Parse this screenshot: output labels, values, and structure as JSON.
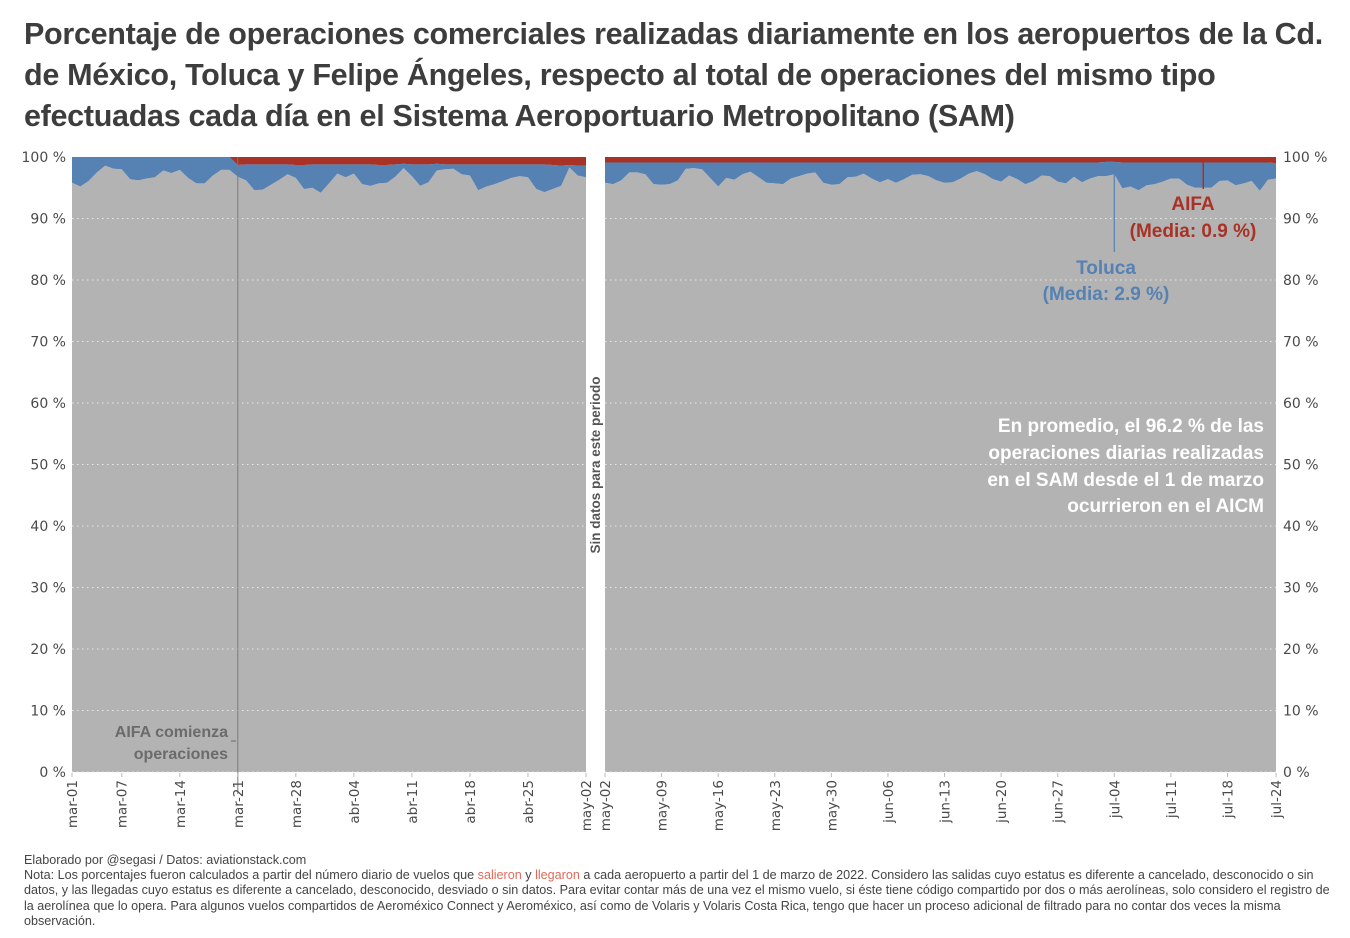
{
  "title": "Porcentaje de operaciones comerciales realizadas diariamente en los aeropuertos de la Cd. de México, Toluca y Felipe Ángeles, respecto al total de operaciones del mismo tipo efectuadas cada día en el Sistema Aeroportuario Metropolitano (SAM)",
  "colors": {
    "aicm": "#b3b3b3",
    "toluca": "#5581b3",
    "aifa": "#a93226",
    "vline_aifa_start": "#7a7a7a",
    "annotation_gray": "#6b6b6b",
    "annotation_white": "#ffffff"
  },
  "chart_data": {
    "type": "area",
    "stacked": true,
    "title": "Porcentaje de operaciones comerciales realizadas diariamente en los aeropuertos de la Cd. de México, Toluca y Felipe Ángeles, respecto al total de operaciones del mismo tipo efectuadas cada día en el Sistema Aeroportuario Metropolitano (SAM)",
    "xlabel": "",
    "ylabel": "",
    "ylim": [
      0,
      100
    ],
    "y_ticks": [
      "0 %",
      "10 %",
      "20 %",
      "30 %",
      "40 %",
      "50 %",
      "60 %",
      "70 %",
      "80 %",
      "90 %",
      "100 %"
    ],
    "grid": true,
    "legend": "inline-annotations",
    "panels": [
      {
        "name": "left",
        "x_range": [
          "2022-03-01",
          "2022-05-02"
        ],
        "x_ticks": [
          "mar-01",
          "mar-07",
          "mar-14",
          "mar-21",
          "mar-28",
          "abr-04",
          "abr-11",
          "abr-18",
          "abr-25",
          "may-02"
        ],
        "x_tick_days": [
          0,
          6,
          13,
          20,
          27,
          34,
          41,
          48,
          55,
          62
        ],
        "series": [
          {
            "name": "AICM",
            "values": [
              95.8,
              95.2,
              96.1,
              97.5,
              98.6,
              98.1,
              98.0,
              96.4,
              96.2,
              96.5,
              96.7,
              97.8,
              97.4,
              97.9,
              96.6,
              95.7,
              95.7,
              97.0,
              97.9,
              97.9,
              96.8,
              96.2,
              94.6,
              94.7,
              95.5,
              96.3,
              97.2,
              96.6,
              94.8,
              95.0,
              94.2,
              95.7,
              97.3,
              96.7,
              97.3,
              95.6,
              95.3,
              95.7,
              95.8,
              96.8,
              98.2,
              96.9,
              95.3,
              95.9,
              97.8,
              98.0,
              98.1,
              97.2,
              97.0,
              94.6,
              95.2,
              95.6,
              96.1,
              96.6,
              96.9,
              96.7,
              94.8,
              94.3,
              94.8,
              95.3,
              98.3,
              97.0,
              96.7
            ]
          },
          {
            "name": "Toluca",
            "values": [
              4.2,
              4.8,
              3.9,
              2.5,
              1.4,
              1.9,
              2.0,
              3.6,
              3.8,
              3.5,
              3.3,
              2.2,
              2.6,
              2.1,
              3.4,
              4.3,
              4.3,
              3.0,
              2.1,
              2.1,
              1.9,
              2.6,
              4.2,
              4.1,
              3.3,
              2.5,
              1.6,
              2.1,
              3.9,
              3.8,
              4.6,
              3.1,
              1.5,
              2.1,
              1.5,
              3.2,
              3.5,
              3.0,
              2.9,
              2.0,
              0.7,
              1.9,
              3.5,
              2.9,
              1.1,
              0.8,
              0.7,
              1.6,
              1.8,
              4.2,
              3.6,
              3.2,
              2.7,
              2.2,
              1.9,
              2.1,
              4.0,
              4.5,
              3.9,
              3.3,
              0.4,
              1.6,
              1.9
            ]
          },
          {
            "name": "AIFA",
            "values": [
              0,
              0,
              0,
              0,
              0,
              0,
              0,
              0,
              0,
              0,
              0,
              0,
              0,
              0,
              0,
              0,
              0,
              0,
              0,
              0,
              1.3,
              1.2,
              1.2,
              1.2,
              1.2,
              1.2,
              1.2,
              1.3,
              1.3,
              1.2,
              1.2,
              1.2,
              1.2,
              1.2,
              1.2,
              1.2,
              1.2,
              1.3,
              1.3,
              1.2,
              1.1,
              1.2,
              1.2,
              1.2,
              1.1,
              1.2,
              1.2,
              1.2,
              1.2,
              1.2,
              1.2,
              1.2,
              1.2,
              1.2,
              1.2,
              1.2,
              1.2,
              1.2,
              1.3,
              1.4,
              1.3,
              1.4,
              1.4
            ]
          }
        ]
      },
      {
        "name": "right",
        "x_range": [
          "2022-05-02",
          "2022-07-24"
        ],
        "x_ticks": [
          "may-02",
          "may-09",
          "may-16",
          "may-23",
          "may-30",
          "jun-06",
          "jun-13",
          "jun-20",
          "jun-27",
          "jul-04",
          "jul-11",
          "jul-18",
          "jul-24"
        ],
        "x_tick_days": [
          0,
          7,
          14,
          21,
          28,
          35,
          42,
          49,
          56,
          63,
          70,
          77,
          83
        ],
        "series": [
          {
            "name": "AICM",
            "values": [
              95.8,
              95.6,
              96.2,
              97.5,
              97.5,
              97.2,
              95.6,
              95.5,
              95.6,
              96.2,
              98.1,
              98.2,
              98.0,
              96.6,
              95.2,
              96.6,
              96.3,
              97.2,
              97.6,
              96.7,
              95.8,
              95.7,
              95.6,
              96.5,
              96.9,
              97.3,
              97.5,
              95.8,
              95.5,
              95.6,
              96.7,
              96.8,
              97.3,
              96.5,
              95.9,
              96.4,
              95.8,
              96.4,
              97.1,
              97.2,
              96.9,
              96.2,
              95.8,
              95.9,
              96.5,
              97.3,
              97.7,
              97.2,
              96.4,
              96.0,
              97.0,
              96.4,
              95.6,
              96.1,
              97.0,
              96.9,
              96.0,
              95.7,
              96.8,
              95.9,
              96.5,
              96.9,
              96.9,
              97.2,
              94.9,
              95.2,
              94.6,
              95.4,
              95.6,
              96.0,
              96.5,
              96.5,
              95.5,
              95.0,
              95.0,
              95.0,
              96.1,
              96.2,
              95.4,
              95.7,
              96.1,
              94.5,
              96.3,
              96.5
            ]
          },
          {
            "name": "Toluca",
            "values": [
              3.3,
              3.5,
              2.9,
              1.6,
              1.6,
              1.9,
              3.5,
              3.6,
              3.5,
              2.9,
              1.0,
              0.9,
              1.1,
              2.5,
              3.9,
              2.5,
              2.8,
              1.9,
              1.5,
              2.4,
              3.3,
              3.4,
              3.5,
              2.6,
              2.2,
              1.8,
              1.6,
              3.3,
              3.6,
              3.5,
              2.4,
              2.3,
              1.8,
              2.6,
              3.2,
              2.7,
              3.3,
              2.7,
              2.0,
              1.9,
              2.2,
              2.9,
              3.3,
              3.2,
              2.6,
              1.8,
              1.4,
              1.9,
              2.7,
              3.1,
              2.1,
              2.7,
              3.5,
              3.0,
              2.1,
              2.2,
              3.1,
              3.4,
              2.3,
              3.2,
              2.6,
              2.2,
              2.3,
              2.0,
              4.2,
              3.9,
              4.5,
              3.7,
              3.5,
              3.1,
              2.6,
              2.6,
              3.6,
              4.1,
              4.1,
              4.1,
              3.0,
              2.9,
              3.7,
              3.4,
              3.0,
              4.6,
              2.8,
              2.5
            ]
          },
          {
            "name": "AIFA",
            "values": [
              0.9,
              0.9,
              0.9,
              0.9,
              0.9,
              0.9,
              0.9,
              0.9,
              0.9,
              0.9,
              0.9,
              0.9,
              0.9,
              0.9,
              0.9,
              0.9,
              0.9,
              0.9,
              0.9,
              0.9,
              0.9,
              0.9,
              0.9,
              0.9,
              0.9,
              0.9,
              0.9,
              0.9,
              0.9,
              0.9,
              0.9,
              0.9,
              0.9,
              0.9,
              0.9,
              0.9,
              0.9,
              0.9,
              0.9,
              0.9,
              0.9,
              0.9,
              0.9,
              0.9,
              0.9,
              0.9,
              0.9,
              0.9,
              0.9,
              0.9,
              0.9,
              0.9,
              0.9,
              0.9,
              0.9,
              0.9,
              0.9,
              0.9,
              0.9,
              0.9,
              0.9,
              0.9,
              0.8,
              0.8,
              0.9,
              0.9,
              0.9,
              0.9,
              0.9,
              0.9,
              0.9,
              0.9,
              0.9,
              0.9,
              0.9,
              0.9,
              0.9,
              0.9,
              0.9,
              0.9,
              0.9,
              0.9,
              0.9,
              1.0
            ]
          }
        ]
      }
    ],
    "annotations": {
      "aifa_start": {
        "line1": "AIFA comienza",
        "line2": "operaciones",
        "date": "mar-21"
      },
      "gap_label": "Sin datos para este periodo",
      "toluca_label": {
        "line1": "Toluca",
        "line2": "(Media: 2.9 %)",
        "pointer_day": 63
      },
      "aifa_label": {
        "line1": "AIFA",
        "line2": "(Media: 0.9 %)",
        "pointer_day": 74
      },
      "aicm_summary": [
        "En promedio, el 96.2 % de las",
        "operaciones diarias realizadas",
        "en el SAM desde el 1 de marzo",
        "ocurrieron en el AICM"
      ]
    }
  },
  "footer": {
    "credit": "Elaborado por @segasi / Datos: aviationstack.com",
    "note_prefix": "Nota: Los porcentajes fueron calculados a partir del número diario de vuelos que ",
    "note_word1": "salieron",
    "note_mid": " y ",
    "note_word2": "llegaron",
    "note_rest": " a cada aeropuerto a partir del 1 de marzo de 2022. Considero las salidas cuyo estatus es diferente a cancelado, desconocido o sin datos, y las llegadas cuyo estatus es diferente a cancelado, desconocido, desviado o sin datos. Para evitar contar más de una vez el mismo vuelo, si éste tiene código compartido por dos o más aerolíneas, solo considero el registro de la aerolínea que lo opera. Para algunos vuelos compartidos de Aeroméxico Connect y Aeroméxico, así como de Volaris y Volaris Costa Rica, tengo que hacer un proceso adicional de filtrado para no contar dos veces la misma observación."
  }
}
